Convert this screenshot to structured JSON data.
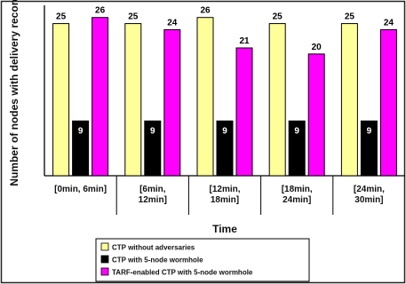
{
  "chart_data": {
    "type": "bar",
    "title": "",
    "xlabel": "Time",
    "ylabel": "Number of nodes with delivery record",
    "ylim": [
      0,
      28
    ],
    "grid": false,
    "legend_position": "bottom",
    "categories": [
      [
        "[0min, 6min]"
      ],
      [
        "[6min,",
        "12min]"
      ],
      [
        "[12min,",
        "18min]"
      ],
      [
        "[18min,",
        "24min]"
      ],
      [
        "[24min,",
        "30min]"
      ]
    ],
    "series": [
      {
        "name": "CTP without adversaries",
        "color": "#ffff99",
        "label_color": "#000000",
        "values": [
          25,
          25,
          26,
          25,
          25
        ]
      },
      {
        "name": "CTP with 5-node wormhole",
        "color": "#000000",
        "label_color": "#ffffff",
        "values": [
          9,
          9,
          9,
          9,
          9
        ]
      },
      {
        "name": "TARF-enabled CTP with 5-node wormhole",
        "color": "#ff00ff",
        "label_color": "#000000",
        "values": [
          26,
          24,
          21,
          20,
          24
        ]
      }
    ]
  }
}
